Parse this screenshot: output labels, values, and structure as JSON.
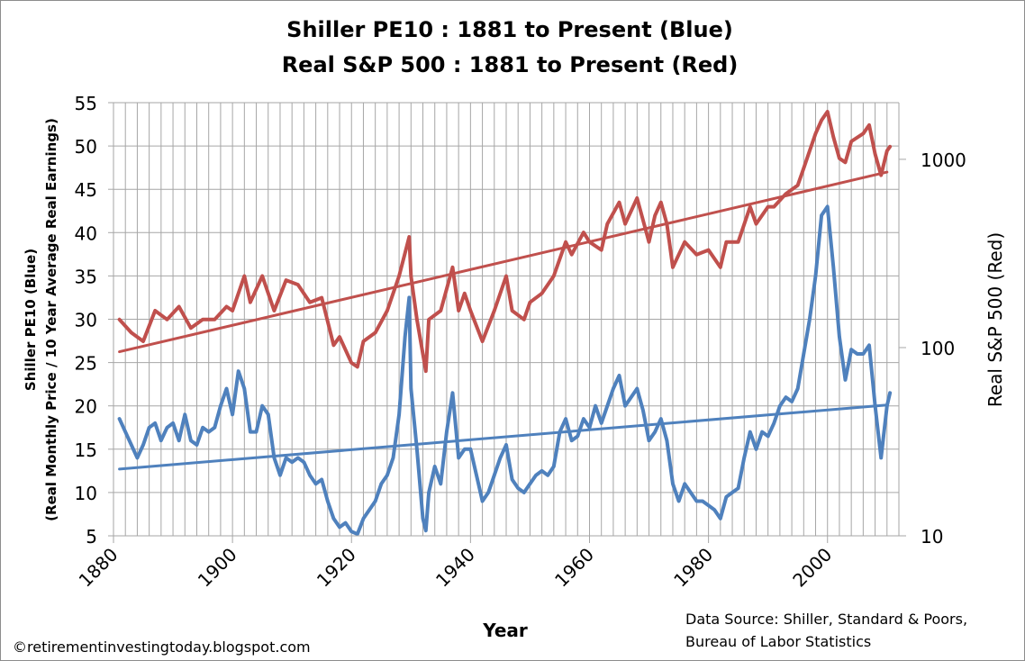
{
  "chart_data": {
    "type": "line",
    "title": [
      "Shiller PE10 : 1881 to Present (Blue)",
      "Real S&P 500 : 1881 to Present (Red)"
    ],
    "xlabel": "Year",
    "ylabel_left": [
      "Shiller PE10 (Blue)",
      "(Real Monthly Price / 10 Year Average Real Earnings)"
    ],
    "ylabel_right": "Real  S&P 500 (Red)",
    "xlim": [
      1880,
      2012
    ],
    "ylim_left": [
      5,
      55
    ],
    "ylim_right": [
      10,
      2000
    ],
    "right_axis_scale": "log",
    "x_ticks": [
      "1880",
      "1900",
      "1920",
      "1940",
      "1960",
      "1980",
      "2000"
    ],
    "y_ticks_left": [
      "5",
      "10",
      "15",
      "20",
      "25",
      "30",
      "35",
      "40",
      "45",
      "50",
      "55"
    ],
    "y_ticks_right": [
      "10",
      "100",
      "1000"
    ],
    "grid": true,
    "colors": {
      "pe10": "#4f81bd",
      "sp500": "#c0504d",
      "grid": "#a6a6a6"
    },
    "series": [
      {
        "axis": "left",
        "color": "#4f81bd",
        "x": [
          1881,
          1882,
          1883,
          1884,
          1885,
          1886,
          1887,
          1888,
          1889,
          1890,
          1891,
          1892,
          1893,
          1894,
          1895,
          1896,
          1897,
          1898,
          1899,
          1900,
          1901,
          1902,
          1903,
          1904,
          1905,
          1906,
          1907,
          1908,
          1909,
          1910,
          1911,
          1912,
          1913,
          1914,
          1915,
          1916,
          1917,
          1918,
          1919,
          1920,
          1921,
          1922,
          1923,
          1924,
          1925,
          1926,
          1927,
          1928,
          1929,
          1929.7,
          1930,
          1931,
          1932,
          1932.5,
          1933,
          1934,
          1935,
          1936,
          1937,
          1938,
          1939,
          1940,
          1941,
          1942,
          1943,
          1944,
          1945,
          1946,
          1947,
          1948,
          1949,
          1950,
          1951,
          1952,
          1953,
          1954,
          1955,
          1956,
          1957,
          1958,
          1959,
          1960,
          1961,
          1962,
          1963,
          1964,
          1965,
          1966,
          1967,
          1968,
          1969,
          1970,
          1971,
          1972,
          1973,
          1974,
          1975,
          1976,
          1977,
          1978,
          1979,
          1980,
          1981,
          1982,
          1983,
          1984,
          1985,
          1986,
          1987,
          1988,
          1989,
          1990,
          1991,
          1992,
          1993,
          1994,
          1995,
          1996,
          1997,
          1998,
          1999,
          2000,
          2001,
          2002,
          2003,
          2004,
          2005,
          2006,
          2007,
          2008,
          2009,
          2010,
          2010.5
        ],
        "values": [
          18.5,
          17,
          15.5,
          14,
          15.5,
          17.5,
          18,
          16,
          17.5,
          18,
          16,
          19,
          16,
          15.5,
          17.5,
          17,
          17.5,
          20,
          22,
          19,
          24,
          22,
          17,
          17,
          20,
          19,
          14,
          12,
          14,
          13.5,
          14,
          13.5,
          12,
          11,
          11.5,
          9,
          7,
          6,
          6.5,
          5.5,
          5.2,
          7,
          8,
          9,
          11,
          12,
          14,
          19,
          28,
          32.5,
          22,
          15,
          7,
          5.6,
          10,
          13,
          11,
          17,
          21.5,
          14,
          15,
          15,
          12,
          9,
          10,
          12,
          14,
          15.5,
          11.5,
          10.5,
          10,
          11,
          12,
          12.5,
          12,
          13,
          17,
          18.5,
          16,
          16.5,
          18.5,
          17.5,
          20,
          18,
          20,
          22,
          23.5,
          20,
          21,
          22,
          19.5,
          16,
          17,
          18.5,
          16,
          11,
          9,
          11,
          10,
          9,
          9,
          8.5,
          8,
          7,
          9.5,
          10,
          10.5,
          14,
          17,
          15,
          17,
          16.5,
          18,
          20,
          21,
          20.5,
          22,
          26,
          30,
          35,
          42,
          43,
          36,
          28,
          23,
          26.5,
          26,
          26,
          27,
          20,
          14,
          20,
          21.5
        ]
      },
      {
        "axis": "right",
        "color": "#c0504d",
        "x": [
          1881,
          1883,
          1885,
          1887,
          1889,
          1891,
          1893,
          1895,
          1897,
          1899,
          1900,
          1902,
          1903,
          1905,
          1907,
          1909,
          1911,
          1913,
          1915,
          1917,
          1918,
          1920,
          1921,
          1922,
          1924,
          1926,
          1928,
          1929.7,
          1930,
          1931,
          1932.5,
          1933,
          1935,
          1937,
          1938,
          1939,
          1940,
          1942,
          1944,
          1946,
          1947,
          1949,
          1950,
          1952,
          1954,
          1956,
          1957,
          1959,
          1960,
          1962,
          1963,
          1965,
          1966,
          1968,
          1970,
          1971,
          1972,
          1973,
          1974,
          1976,
          1978,
          1980,
          1982,
          1983,
          1985,
          1987,
          1988,
          1990,
          1991,
          1993,
          1995,
          1996,
          1997,
          1998,
          1999,
          2000,
          2001,
          2002,
          2003,
          2004,
          2006,
          2007,
          2008,
          2009,
          2010,
          2010.5
        ],
        "values": [
          141,
          120,
          108,
          157,
          141,
          165,
          127,
          141,
          141,
          165,
          157,
          240,
          174,
          240,
          157,
          228,
          216,
          174,
          184,
          103,
          114,
          83,
          79,
          108,
          120,
          157,
          240,
          387,
          240,
          141,
          75,
          141,
          157,
          267,
          157,
          194,
          157,
          108,
          157,
          240,
          157,
          141,
          174,
          194,
          240,
          364,
          312,
          409,
          364,
          330,
          454,
          591,
          454,
          622,
          364,
          503,
          591,
          454,
          267,
          364,
          312,
          330,
          267,
          364,
          364,
          560,
          454,
          560,
          560,
          656,
          728,
          897,
          1109,
          1370,
          1614,
          1791,
          1313,
          1013,
          964,
          1245,
          1370,
          1520,
          1066,
          823,
          1109,
          1169
        ]
      }
    ],
    "trendlines": [
      {
        "axis": "left",
        "color": "#4f81bd",
        "x": [
          1881,
          2010
        ],
        "values": [
          12.7,
          20.1
        ]
      },
      {
        "axis": "right",
        "color": "#c0504d",
        "x": [
          1881,
          2010
        ],
        "values": [
          95,
          855
        ]
      }
    ]
  },
  "footer": {
    "copyright": "©retirementinvestingtoday.blogspot.com",
    "source_line1": "Data Source: Shiller, Standard & Poors,",
    "source_line2": "Bureau of Labor Statistics"
  }
}
